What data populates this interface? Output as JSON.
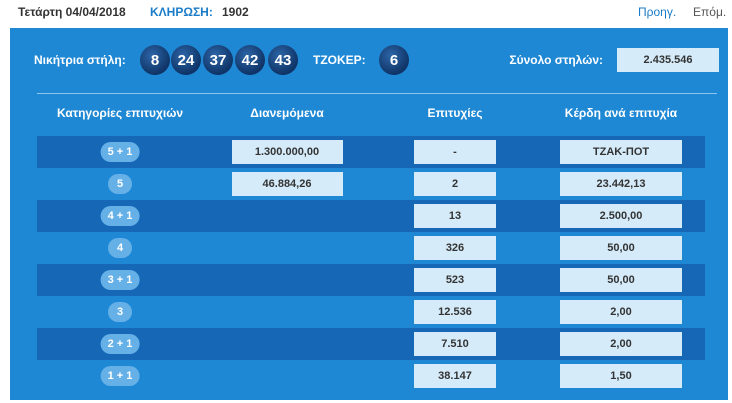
{
  "header": {
    "date": "Τετάρτη 04/04/2018",
    "draw_label": "ΚΛΗΡΩΣΗ:",
    "draw_number": "1902",
    "prev": "Προηγ.",
    "next": "Επόμ."
  },
  "winning": {
    "label": "Νικήτρια στήλη:",
    "numbers": [
      "8",
      "24",
      "37",
      "42",
      "43"
    ],
    "joker_label": "ΤΖΟΚΕΡ:",
    "joker": "6",
    "total_label": "Σύνολο στηλών:",
    "total": "2.435.546"
  },
  "table": {
    "columns": [
      "Κατηγορίες επιτυχιών",
      "Διανεμόμενα",
      "Επιτυχίες",
      "Κέρδη ανά επιτυχία"
    ],
    "rows": [
      [
        "5 + 1",
        "1.300.000,00",
        "-",
        "ΤΖΑΚ-ΠΟΤ"
      ],
      [
        "5",
        "46.884,26",
        "2",
        "23.442,13"
      ],
      [
        "4 + 1",
        null,
        "13",
        "2.500,00"
      ],
      [
        "4",
        null,
        "326",
        "50,00"
      ],
      [
        "3 + 1",
        null,
        "523",
        "50,00"
      ],
      [
        "3",
        null,
        "12.536",
        "2,00"
      ],
      [
        "2 + 1",
        null,
        "7.510",
        "2,00"
      ],
      [
        "1 + 1",
        null,
        "38.147",
        "1,50"
      ]
    ]
  }
}
